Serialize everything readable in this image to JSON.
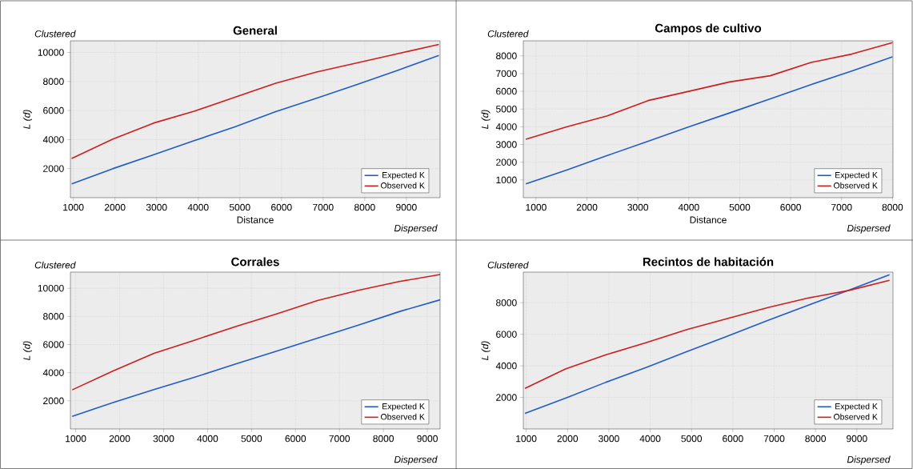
{
  "chart_data": [
    {
      "type": "line",
      "title": "General",
      "xlabel": "Distance",
      "ylabel": "L (d)",
      "annotations": [
        "Clustered",
        "Dispersed"
      ],
      "x": [
        960,
        1940,
        2920,
        3900,
        4880,
        5860,
        6840,
        7820,
        8800,
        9780
      ],
      "xlim": [
        930,
        9810
      ],
      "ylim": [
        0,
        10800
      ],
      "xticks": [
        1000,
        2000,
        3000,
        4000,
        5000,
        6000,
        7000,
        8000,
        9000
      ],
      "yticks": [
        2000,
        4000,
        6000,
        8000,
        10000
      ],
      "grid": true,
      "legend": "bottom right",
      "series": [
        {
          "name": "Expected K",
          "color": "#1f5cc8",
          "values": [
            950,
            1990,
            2950,
            3920,
            4870,
            5920,
            6850,
            7800,
            8780,
            9800
          ]
        },
        {
          "name": "Observed K",
          "color": "#cc1f1f",
          "values": [
            2700,
            4020,
            5130,
            5950,
            6920,
            7880,
            8650,
            9280,
            9920,
            10550
          ]
        }
      ]
    },
    {
      "type": "line",
      "title": "Campos de cultivo",
      "xlabel": "Distance",
      "ylabel": "L (d)",
      "annotations": [
        "Clustered",
        "Dispersed"
      ],
      "x": [
        800,
        1600,
        2400,
        3200,
        4000,
        4800,
        5600,
        6400,
        7200,
        8000
      ],
      "xlim": [
        750,
        8010
      ],
      "ylim": [
        0,
        8850
      ],
      "xticks": [
        1000,
        2000,
        3000,
        4000,
        5000,
        6000,
        7000,
        8000
      ],
      "yticks": [
        1000,
        2000,
        3000,
        4000,
        5000,
        6000,
        7000,
        8000
      ],
      "grid": true,
      "legend": "bottom right",
      "series": [
        {
          "name": "Expected K",
          "color": "#1f5cc8",
          "values": [
            780,
            1560,
            2380,
            3180,
            4000,
            4780,
            5580,
            6380,
            7150,
            7950
          ]
        },
        {
          "name": "Observed K",
          "color": "#cc1f1f",
          "values": [
            3300,
            4000,
            4620,
            5480,
            6000,
            6530,
            6880,
            7630,
            8100,
            8750
          ]
        }
      ]
    },
    {
      "type": "line",
      "title": "Corrales",
      "ylabel": "L (d)",
      "annotations": [
        "Clustered",
        "Dispersed"
      ],
      "x": [
        920,
        1850,
        2780,
        3710,
        4640,
        5570,
        6500,
        7430,
        8360,
        9290
      ],
      "xlim": [
        880,
        9290
      ],
      "ylim": [
        0,
        11150
      ],
      "xticks": [
        1000,
        2000,
        3000,
        4000,
        5000,
        6000,
        7000,
        8000,
        9000
      ],
      "yticks": [
        2000,
        4000,
        6000,
        8000,
        10000
      ],
      "grid": true,
      "legend": "bottom right",
      "series": [
        {
          "name": "Expected K",
          "color": "#1f5cc8",
          "values": [
            900,
            1880,
            2800,
            3680,
            4620,
            5530,
            6450,
            7380,
            8340,
            9180
          ]
        },
        {
          "name": "Observed K",
          "color": "#cc1f1f",
          "values": [
            2780,
            4120,
            5380,
            6320,
            7280,
            8180,
            9130,
            9850,
            10480,
            10980
          ]
        }
      ]
    },
    {
      "type": "line",
      "title": "Recintos de habitación",
      "ylabel": "L (d)",
      "annotations": [
        "Clustered",
        "Dispersed"
      ],
      "x": [
        970,
        1950,
        2930,
        3910,
        4890,
        5870,
        6850,
        7830,
        8810,
        9790
      ],
      "xlim": [
        930,
        9875
      ],
      "ylim": [
        0,
        9940
      ],
      "xticks": [
        1000,
        2000,
        3000,
        4000,
        5000,
        6000,
        7000,
        8000,
        9000
      ],
      "yticks": [
        2000,
        4000,
        6000,
        8000
      ],
      "grid": true,
      "legend": "bottom right",
      "series": [
        {
          "name": "Expected K",
          "color": "#1f5cc8",
          "values": [
            990,
            1950,
            2960,
            3900,
            4900,
            5880,
            6880,
            7850,
            8800,
            9770
          ]
        },
        {
          "name": "Observed K",
          "color": "#cc1f1f",
          "values": [
            2570,
            3800,
            4700,
            5480,
            6300,
            7000,
            7700,
            8300,
            8780,
            9420
          ]
        }
      ]
    }
  ]
}
